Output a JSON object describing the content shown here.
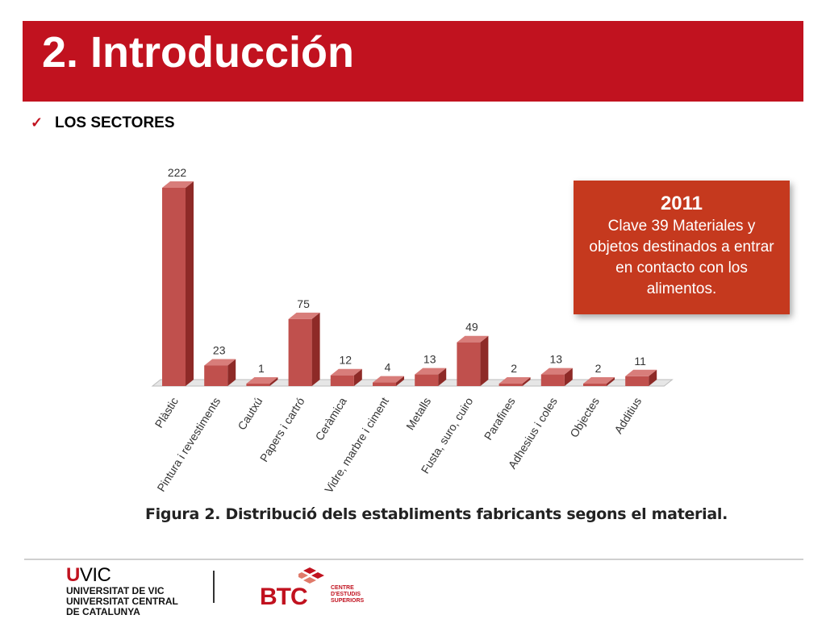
{
  "header": {
    "title": "2. Introducción"
  },
  "section": {
    "check_icon": "checkmark-icon",
    "label": "LOS SECTORES"
  },
  "callout": {
    "year": "2011",
    "text": "Clave 39 Materiales y objetos destinados a entrar en contacto con los alimentos."
  },
  "chart_data": {
    "type": "bar",
    "categories": [
      "Plàstic",
      "Pintura i revestiments",
      "Cautxú",
      "Papers i cartró",
      "Ceràmica",
      "Vidre, marbre i ciment",
      "Metalls",
      "Fusta, suro, cuiro",
      "Parafines",
      "Adhesius i coles",
      "Objectes",
      "Additius"
    ],
    "values": [
      222,
      23,
      1,
      75,
      12,
      4,
      13,
      49,
      2,
      13,
      2,
      11
    ],
    "title": "Figura 2. Distribució dels establiments fabricants segons el material.",
    "xlabel": "",
    "ylabel": "",
    "ylim": [
      0,
      222
    ],
    "grid": false,
    "data_labels": true,
    "bar_color": "#c0504d"
  },
  "footer": {
    "uvic_u": "U",
    "uvic_vic": "VIC",
    "uvic_lines": [
      "UNIVERSITAT DE VIC",
      "UNIVERSITAT CENTRAL",
      "DE CATALUNYA"
    ],
    "btc_logo": "BTC",
    "btc_lines": [
      "CENTRE",
      "D'ESTUDIS",
      "SUPERIORS"
    ]
  },
  "colors": {
    "brand_red": "#c1121f",
    "callout_bg": "#c5391e",
    "bar": "#c0504d"
  }
}
